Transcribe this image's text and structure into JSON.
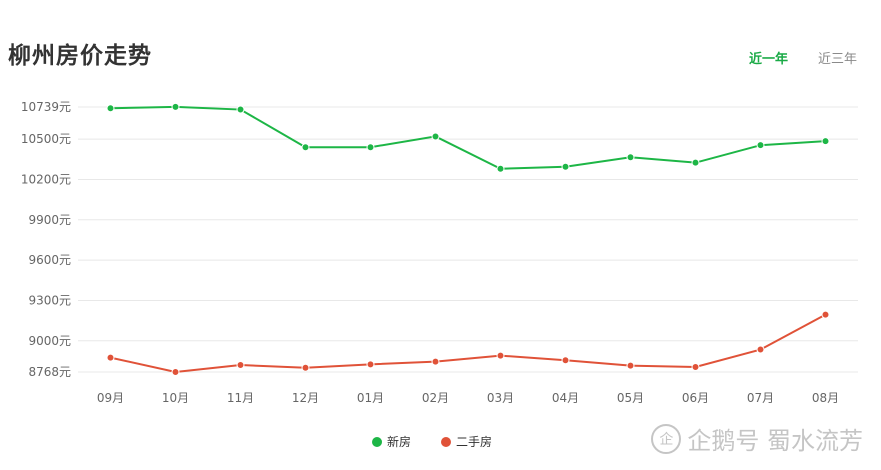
{
  "header": {
    "title": "柳州房价走势"
  },
  "tabs": [
    {
      "label": "近一年",
      "active": true
    },
    {
      "label": "近三年",
      "active": false
    }
  ],
  "colors": {
    "new": "#1db646",
    "second": "#e05238",
    "accent": "#1aaa46"
  },
  "legend": [
    {
      "label": "新房",
      "color": "#1db646"
    },
    {
      "label": "二手房",
      "color": "#e05238"
    }
  ],
  "watermark": {
    "logo": "企",
    "text": "企鹅号 蜀水流芳"
  },
  "chart_data": {
    "type": "line",
    "title": "柳州房价走势",
    "categories": [
      "09月",
      "10月",
      "11月",
      "12月",
      "01月",
      "02月",
      "03月",
      "04月",
      "05月",
      "06月",
      "07月",
      "08月"
    ],
    "series": [
      {
        "name": "新房",
        "values": [
          10730,
          10740,
          10720,
          10440,
          10440,
          10520,
          10280,
          10295,
          10365,
          10325,
          10455,
          10485
        ]
      },
      {
        "name": "二手房",
        "values": [
          8875,
          8768,
          8820,
          8800,
          8825,
          8845,
          8890,
          8855,
          8815,
          8805,
          8935,
          9195
        ]
      }
    ],
    "y_ticks": [
      "10739元",
      "10500元",
      "10200元",
      "9900元",
      "9600元",
      "9300元",
      "9000元",
      "8768元"
    ],
    "y_tick_values": [
      10739,
      10500,
      10200,
      9900,
      9600,
      9300,
      9000,
      8768
    ],
    "ylim": [
      8768,
      10739
    ],
    "grid": true,
    "legend_position": "bottom"
  }
}
